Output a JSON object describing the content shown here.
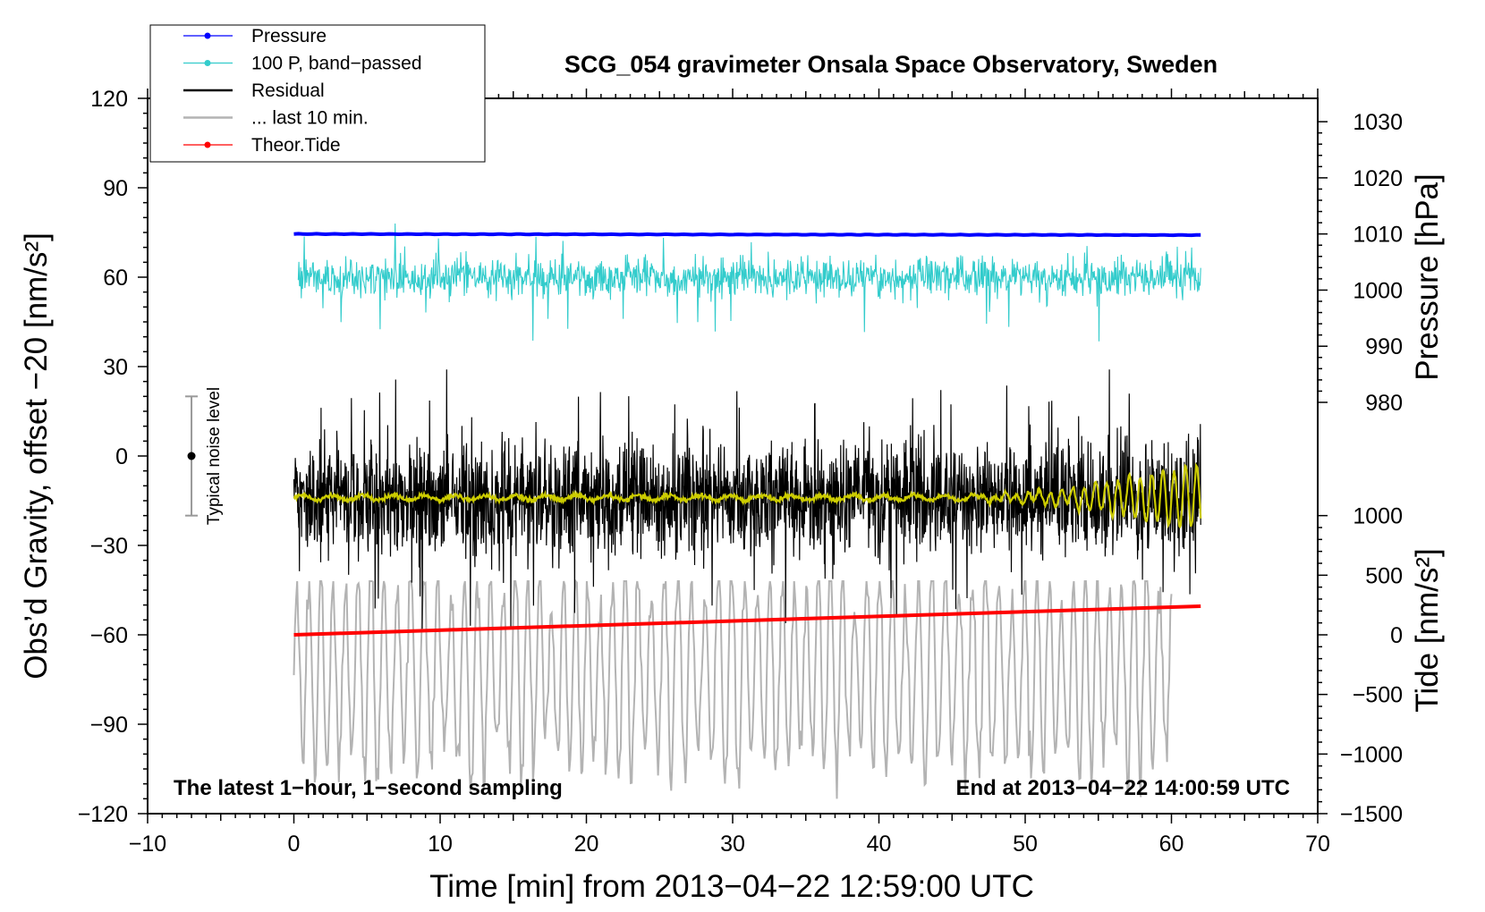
{
  "chart_data": {
    "type": "line",
    "title": "SCG_054 gravimeter Onsala Space Observatory, Sweden",
    "xlabel": "Time [min] from 2013−04−22 12:59:00 UTC",
    "ylabel_left": "Obs’d Gravity, offset −20 [nm/s²]",
    "ylabel_right_pressure": "Pressure [hPa]",
    "ylabel_right_tide": "Tide [nm/s²]",
    "xlim": [
      -10,
      70
    ],
    "ylim_left": [
      -120,
      120
    ],
    "x_ticks": [
      {
        "value": -10,
        "label": "−10"
      },
      {
        "value": 0,
        "label": "0"
      },
      {
        "value": 10,
        "label": "10"
      },
      {
        "value": 20,
        "label": "20"
      },
      {
        "value": 30,
        "label": "30"
      },
      {
        "value": 40,
        "label": "40"
      },
      {
        "value": 50,
        "label": "50"
      },
      {
        "value": 60,
        "label": "60"
      },
      {
        "value": 70,
        "label": "70"
      }
    ],
    "y_left_ticks": [
      {
        "value": 120,
        "label": "120"
      },
      {
        "value": 90,
        "label": "90"
      },
      {
        "value": 60,
        "label": "60"
      },
      {
        "value": 30,
        "label": "30"
      },
      {
        "value": 0,
        "label": "0"
      },
      {
        "value": -30,
        "label": "−30"
      },
      {
        "value": -60,
        "label": "−60"
      },
      {
        "value": -90,
        "label": "−90"
      },
      {
        "value": -120,
        "label": "−120"
      }
    ],
    "pressure_axis": {
      "ticks": [
        {
          "value": 1030,
          "label": "1030"
        },
        {
          "value": 1020,
          "label": "1020"
        },
        {
          "value": 1010,
          "label": "1010"
        },
        {
          "value": 1000,
          "label": "1000"
        },
        {
          "value": 990,
          "label": "990"
        },
        {
          "value": 980,
          "label": "980"
        }
      ],
      "map": {
        "value_a": 1010,
        "left_a": 74.5,
        "value_b": 980,
        "left_b": 18
      }
    },
    "tide_axis": {
      "ticks": [
        {
          "value": 1000,
          "label": "1000"
        },
        {
          "value": 500,
          "label": "500"
        },
        {
          "value": 0,
          "label": "0"
        },
        {
          "value": -500,
          "label": "−500"
        },
        {
          "value": -1000,
          "label": "−1000"
        },
        {
          "value": -1500,
          "label": "−1500"
        }
      ],
      "map": {
        "value_a": 1000,
        "left_a": -20,
        "value_b": -1500,
        "left_b": -120
      }
    },
    "legend": {
      "position": "top-left",
      "items": [
        {
          "label": "Pressure",
          "color": "#0000ff",
          "marker": true
        },
        {
          "label": "100 P, band−passed",
          "color": "#33cccc",
          "marker": true
        },
        {
          "label": "Residual",
          "color": "#000000",
          "marker": false
        },
        {
          "label": "... last 10 min.",
          "color": "#b3b3b3",
          "marker": false
        },
        {
          "label": "Theor.Tide",
          "color": "#ff0000",
          "marker": true
        }
      ]
    },
    "annotations": {
      "bottom_left": "The latest 1−hour, 1−second sampling",
      "bottom_right": "End at 2013−04−22 14:00:59 UTC",
      "noise_label": "Typical noise level"
    },
    "noise_bar": {
      "x": -7,
      "center": 0,
      "low": -20,
      "high": 20
    },
    "series": [
      {
        "name": "Pressure",
        "color": "#0000ff",
        "x_start": 0,
        "x_end": 62,
        "summary": {
          "start_hpa": 1010.0,
          "end_hpa": 1009.8
        }
      },
      {
        "name": "100 P, band-passed",
        "color": "#33cccc",
        "x_start": 0.3,
        "x_end": 62,
        "summary": {
          "mean_left": 60,
          "min_left": 35,
          "max_left": 78
        }
      },
      {
        "name": "Residual",
        "color": "#000000",
        "x_start": 0,
        "x_end": 62,
        "summary": {
          "mean_left": -14,
          "min_left": -58,
          "max_left": 29
        }
      },
      {
        "name": "Residual smoothed",
        "color": "#cccc00",
        "x_start": 0,
        "x_end": 62,
        "summary": {
          "mean_left": -14,
          "oscillation_grows_after_min": 52
        }
      },
      {
        "name": "... last 10 min.",
        "color": "#b3b3b3",
        "x_start": 0,
        "x_end": 60,
        "summary": {
          "mean_left": -72,
          "min_left": -115,
          "max_left": -42
        }
      },
      {
        "name": "Theor.Tide",
        "color": "#ff0000",
        "x_start": 0,
        "x_end": 62,
        "values_nm_s2": [
          0,
          240
        ]
      }
    ]
  }
}
